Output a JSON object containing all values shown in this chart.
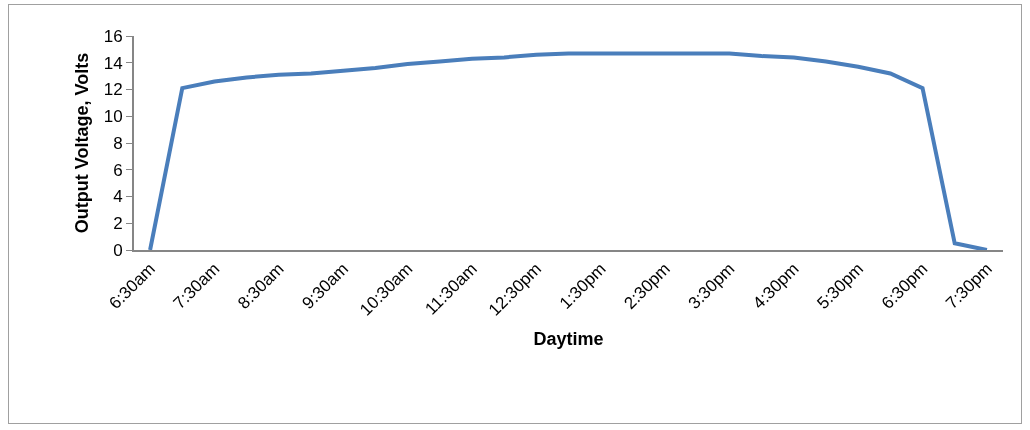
{
  "chart_data": {
    "type": "line",
    "xlabel": "Daytime",
    "ylabel": "Output Voltage, Volts",
    "categories": [
      "6:30am",
      null,
      "7:30am",
      null,
      "8:30am",
      null,
      "9:30am",
      null,
      "10:30am",
      null,
      "11:30am",
      null,
      "12:30pm",
      null,
      "1:30pm",
      null,
      "2:30pm",
      null,
      "3:30pm",
      null,
      "4:30pm",
      null,
      "5:30pm",
      null,
      "6:30pm",
      null,
      "7:30pm"
    ],
    "series": [
      {
        "color": "#4a7ebb",
        "values": [
          0,
          12.1,
          12.6,
          12.9,
          13.1,
          13.2,
          13.4,
          13.6,
          13.9,
          14.1,
          14.3,
          14.4,
          14.6,
          14.7,
          14.7,
          14.7,
          14.7,
          14.7,
          14.7,
          14.5,
          14.4,
          14.1,
          13.7,
          13.2,
          12.1,
          0.5,
          0
        ]
      }
    ],
    "ylim": [
      0,
      16
    ],
    "yticks": [
      0,
      2,
      4,
      6,
      8,
      10,
      12,
      14,
      16
    ],
    "grid": false,
    "marker": "none",
    "line_style": "solid"
  }
}
